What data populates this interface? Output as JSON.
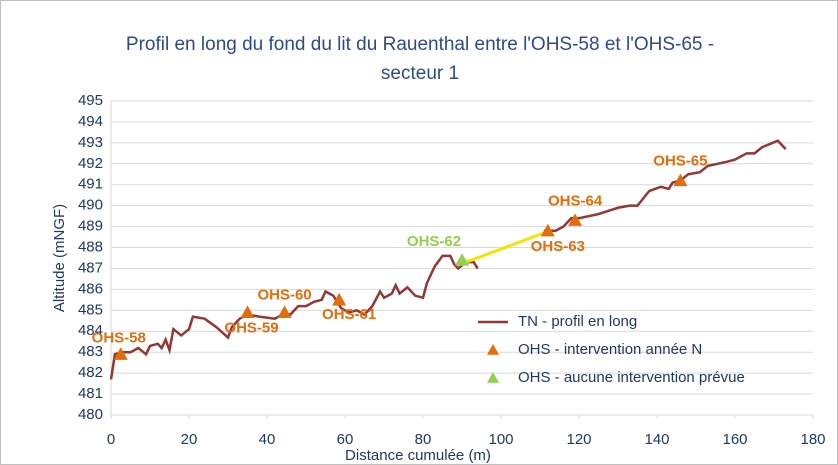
{
  "chart_data": {
    "type": "line",
    "title": "Profil en long du fond du lit du Rauenthal entre l'OHS-58 et l'OHS-65 - secteur 1",
    "x_label": "Distance cumulée (m)",
    "y_label": "Altitude (mNGF)",
    "xlim": [
      0,
      180
    ],
    "xticks": [
      0,
      20,
      40,
      60,
      80,
      100,
      120,
      140,
      160,
      180
    ],
    "ylim": [
      480,
      495
    ],
    "yticks": [
      480,
      481,
      482,
      483,
      484,
      485,
      486,
      487,
      488,
      489,
      490,
      491,
      492,
      493,
      494,
      495
    ],
    "grid": true,
    "legend": "lower right",
    "series": [
      {
        "name": "TN - profil en long",
        "color": "#943634",
        "kind": "line",
        "x": [
          0,
          1,
          3,
          5,
          7,
          9,
          10,
          12,
          13,
          14,
          15,
          16,
          18,
          20,
          21,
          24,
          27,
          30,
          31,
          33,
          35,
          38,
          42,
          44,
          46,
          48,
          50,
          52,
          54,
          55,
          57,
          59,
          61,
          63,
          65,
          67,
          69,
          70,
          72,
          73,
          74,
          76,
          78,
          80,
          81,
          83,
          85,
          87,
          88,
          89,
          91,
          93,
          94,
          null,
          111,
          114,
          116,
          118,
          120,
          125,
          130,
          133,
          135,
          138,
          141,
          143,
          144,
          146,
          148,
          151,
          153,
          158,
          160,
          163,
          165,
          167,
          171,
          173
        ],
        "values": [
          481.7,
          482.9,
          483.0,
          483.0,
          483.2,
          482.9,
          483.3,
          483.4,
          483.2,
          483.6,
          483.1,
          484.1,
          483.8,
          484.1,
          484.7,
          484.6,
          484.2,
          483.7,
          484.2,
          484.6,
          484.8,
          484.7,
          484.6,
          484.8,
          484.8,
          485.2,
          485.2,
          485.4,
          485.5,
          485.9,
          485.7,
          485.1,
          484.9,
          485.0,
          484.8,
          485.2,
          485.9,
          485.6,
          485.8,
          486.2,
          485.8,
          486.1,
          485.7,
          485.6,
          486.3,
          487.1,
          487.6,
          487.6,
          487.2,
          487.0,
          487.3,
          487.3,
          487.0,
          null,
          488.8,
          488.8,
          489.0,
          489.4,
          489.4,
          489.6,
          489.9,
          490.0,
          490.0,
          490.7,
          490.9,
          490.8,
          491.1,
          491.2,
          491.5,
          491.6,
          491.9,
          492.1,
          492.2,
          492.5,
          492.5,
          492.8,
          493.1,
          492.7
        ]
      },
      {
        "color": "#f2e600",
        "kind": "line",
        "x": [
          91,
          111
        ],
        "values": [
          487.3,
          488.7
        ]
      },
      {
        "name": "OHS - intervention année N",
        "color": "#e46c0a",
        "kind": "marker",
        "x": [
          2.5,
          35,
          44.5,
          58.5,
          112,
          119,
          146
        ],
        "values": [
          482.9,
          484.9,
          484.9,
          485.5,
          488.8,
          489.3,
          491.2
        ],
        "labels": [
          "OHS-58",
          "OHS-59",
          "OHS-60",
          "OHS-61",
          "OHS-63",
          "OHS-64",
          "OHS-65"
        ]
      },
      {
        "name": "OHS - aucune intervention prévue",
        "color": "#92d050",
        "kind": "marker",
        "x": [
          90
        ],
        "values": [
          487.4
        ],
        "labels": [
          "OHS-62"
        ]
      }
    ]
  }
}
